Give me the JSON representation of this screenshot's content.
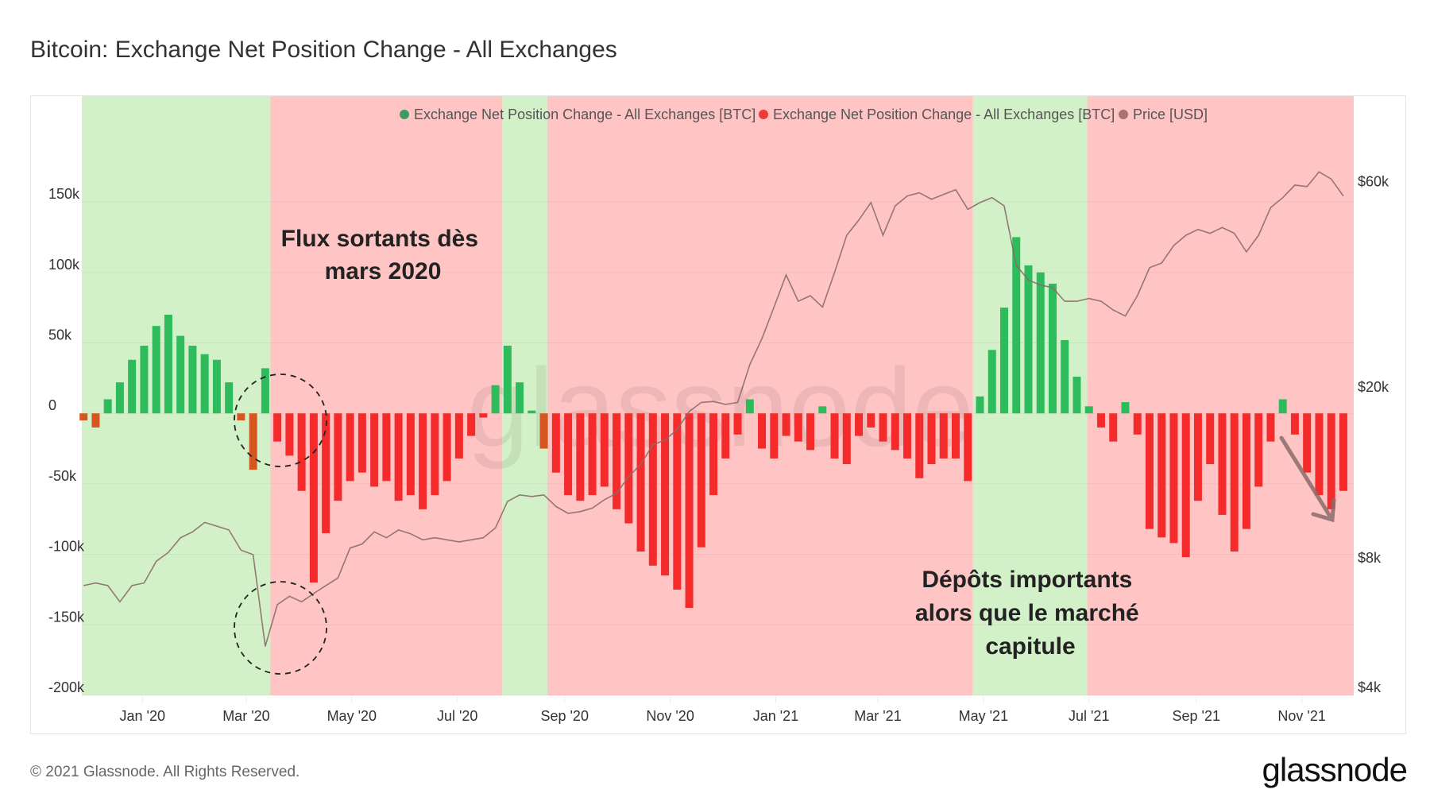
{
  "title": "Bitcoin: Exchange Net Position Change - All Exchanges",
  "footer": {
    "copyright": "© 2021 Glassnode. All Rights Reserved.",
    "logo": "glassnode"
  },
  "watermark": "glassnode",
  "annotations": {
    "outflows": [
      "Flux sortants dès",
      "mars 2020"
    ],
    "deposits": [
      "Dépôts importants",
      "alors que le marché",
      "capitule"
    ]
  },
  "chart_data": {
    "type": "bar+line",
    "title": "Bitcoin: Exchange Net Position Change - All Exchanges",
    "x_range": [
      "2019-11-27",
      "2021-12-01"
    ],
    "x_ticks": [
      {
        "date": "2020-01-01",
        "label": "Jan '20"
      },
      {
        "date": "2020-03-01",
        "label": "Mar '20"
      },
      {
        "date": "2020-05-01",
        "label": "May '20"
      },
      {
        "date": "2020-07-01",
        "label": "Jul '20"
      },
      {
        "date": "2020-09-01",
        "label": "Sep '20"
      },
      {
        "date": "2020-11-01",
        "label": "Nov '20"
      },
      {
        "date": "2021-01-01",
        "label": "Jan '21"
      },
      {
        "date": "2021-03-01",
        "label": "Mar '21"
      },
      {
        "date": "2021-05-01",
        "label": "May '21"
      },
      {
        "date": "2021-07-01",
        "label": "Jul '21"
      },
      {
        "date": "2021-09-01",
        "label": "Sep '21"
      },
      {
        "date": "2021-11-01",
        "label": "Nov '21"
      }
    ],
    "y_left": {
      "range": [
        -200000,
        225000
      ],
      "ticks": [
        {
          "value": 150000,
          "label": "150k"
        },
        {
          "value": 100000,
          "label": "100k"
        },
        {
          "value": 50000,
          "label": "50k"
        },
        {
          "value": 0,
          "label": "0"
        },
        {
          "value": -50000,
          "label": "-50k"
        },
        {
          "value": -100000,
          "label": "-100k"
        },
        {
          "value": -150000,
          "label": "-150k"
        },
        {
          "value": -200000,
          "label": "-200k"
        }
      ]
    },
    "y_right": {
      "scale": "log",
      "range": [
        4000,
        99000
      ],
      "ticks": [
        {
          "value": 60000,
          "label": "$60k"
        },
        {
          "value": 20000,
          "label": "$20k"
        },
        {
          "value": 8000,
          "label": "$8k"
        },
        {
          "value": 4000,
          "label": "$4k"
        }
      ]
    },
    "grid": true,
    "legend": {
      "position": "top-right",
      "items": [
        {
          "label": "Exchange Net Position Change - All Exchanges [BTC]",
          "color": "#3f9a5e"
        },
        {
          "label": "Exchange Net Position Change - All Exchanges [BTC]",
          "color": "#f03a3a"
        },
        {
          "label": "Price [USD]",
          "color": "#a87272"
        }
      ]
    },
    "colors": {
      "positive": "#2dbb5c",
      "negative": "#f52b2b",
      "negative_in_green": "#d5561f",
      "price": "#8a6c6c",
      "band_green": "#d3f1c8",
      "band_red": "#ffc5c5"
    },
    "bands": [
      {
        "from": "2019-11-27",
        "to": "2020-03-15",
        "signal": "green"
      },
      {
        "from": "2020-03-15",
        "to": "2020-07-27",
        "signal": "red"
      },
      {
        "from": "2020-07-27",
        "to": "2020-08-22",
        "signal": "green"
      },
      {
        "from": "2020-08-22",
        "to": "2021-04-25",
        "signal": "red"
      },
      {
        "from": "2021-04-25",
        "to": "2021-06-30",
        "signal": "green"
      },
      {
        "from": "2021-06-30",
        "to": "2021-12-01",
        "signal": "red"
      }
    ],
    "x": [
      "2019-11-28",
      "2019-12-05",
      "2019-12-12",
      "2019-12-19",
      "2019-12-26",
      "2020-01-02",
      "2020-01-09",
      "2020-01-16",
      "2020-01-23",
      "2020-01-30",
      "2020-02-06",
      "2020-02-13",
      "2020-02-20",
      "2020-02-27",
      "2020-03-05",
      "2020-03-12",
      "2020-03-19",
      "2020-03-26",
      "2020-04-02",
      "2020-04-09",
      "2020-04-16",
      "2020-04-23",
      "2020-04-30",
      "2020-05-07",
      "2020-05-14",
      "2020-05-21",
      "2020-05-28",
      "2020-06-04",
      "2020-06-11",
      "2020-06-18",
      "2020-06-25",
      "2020-07-02",
      "2020-07-09",
      "2020-07-16",
      "2020-07-23",
      "2020-07-30",
      "2020-08-06",
      "2020-08-13",
      "2020-08-20",
      "2020-08-27",
      "2020-09-03",
      "2020-09-10",
      "2020-09-17",
      "2020-09-24",
      "2020-10-01",
      "2020-10-08",
      "2020-10-15",
      "2020-10-22",
      "2020-10-29",
      "2020-11-05",
      "2020-11-12",
      "2020-11-19",
      "2020-11-26",
      "2020-12-03",
      "2020-12-10",
      "2020-12-17",
      "2020-12-24",
      "2020-12-31",
      "2021-01-07",
      "2021-01-14",
      "2021-01-21",
      "2021-01-28",
      "2021-02-04",
      "2021-02-11",
      "2021-02-18",
      "2021-02-25",
      "2021-03-04",
      "2021-03-11",
      "2021-03-18",
      "2021-03-25",
      "2021-04-01",
      "2021-04-08",
      "2021-04-15",
      "2021-04-22",
      "2021-04-29",
      "2021-05-06",
      "2021-05-13",
      "2021-05-20",
      "2021-05-27",
      "2021-06-03",
      "2021-06-10",
      "2021-06-17",
      "2021-06-24",
      "2021-07-01",
      "2021-07-08",
      "2021-07-15",
      "2021-07-22",
      "2021-07-29",
      "2021-08-05",
      "2021-08-12",
      "2021-08-19",
      "2021-08-26",
      "2021-09-02",
      "2021-09-09",
      "2021-09-16",
      "2021-09-23",
      "2021-09-30",
      "2021-10-07",
      "2021-10-14",
      "2021-10-21",
      "2021-10-28",
      "2021-11-04",
      "2021-11-11",
      "2021-11-18",
      "2021-11-25"
    ],
    "series": [
      {
        "name": "Exchange Net Position Change - All Exchanges [BTC]",
        "type": "bar",
        "axis": "left",
        "values": [
          -5000,
          -10000,
          10000,
          22000,
          38000,
          48000,
          62000,
          70000,
          55000,
          48000,
          42000,
          38000,
          22000,
          -5000,
          -40000,
          32000,
          -20000,
          -30000,
          -55000,
          -120000,
          -85000,
          -62000,
          -48000,
          -42000,
          -52000,
          -48000,
          -62000,
          -58000,
          -68000,
          -58000,
          -48000,
          -32000,
          -16000,
          -3000,
          20000,
          48000,
          22000,
          2000,
          -25000,
          -42000,
          -58000,
          -62000,
          -58000,
          -52000,
          -68000,
          -78000,
          -98000,
          -108000,
          -115000,
          -125000,
          -138000,
          -95000,
          -58000,
          -32000,
          -15000,
          10000,
          -25000,
          -32000,
          -16000,
          -20000,
          -26000,
          5000,
          -32000,
          -36000,
          -16000,
          -10000,
          -20000,
          -26000,
          -32000,
          -46000,
          -36000,
          -32000,
          -32000,
          -48000,
          12000,
          45000,
          75000,
          125000,
          105000,
          100000,
          92000,
          52000,
          26000,
          5000,
          -10000,
          -20000,
          8000,
          -15000,
          -82000,
          -88000,
          -92000,
          -102000,
          -62000,
          -36000,
          -72000,
          -98000,
          -82000,
          -52000,
          -20000,
          10000,
          -15000,
          -42000,
          -58000,
          -68000,
          -55000
        ]
      },
      {
        "name": "Price [USD]",
        "type": "line",
        "axis": "right",
        "values": [
          7200,
          7300,
          7200,
          6600,
          7200,
          7300,
          8200,
          8600,
          9300,
          9600,
          10100,
          9900,
          9700,
          8700,
          8500,
          5200,
          6500,
          6800,
          6600,
          6900,
          7200,
          7500,
          8800,
          9000,
          9600,
          9300,
          9700,
          9500,
          9200,
          9300,
          9200,
          9100,
          9200,
          9300,
          9800,
          11300,
          11700,
          11600,
          11700,
          11000,
          10600,
          10700,
          10900,
          11400,
          11800,
          12900,
          13800,
          15300,
          15700,
          16600,
          18300,
          19200,
          19300,
          19000,
          19200,
          23500,
          27000,
          32000,
          38000,
          33000,
          34000,
          32000,
          38500,
          47000,
          51000,
          56000,
          47000,
          55000,
          58000,
          59000,
          57000,
          58500,
          60000,
          54000,
          56000,
          57500,
          55000,
          40000,
          37000,
          36000,
          35500,
          33000,
          33000,
          33500,
          33000,
          31500,
          30500,
          34000,
          39500,
          40500,
          44500,
          47000,
          48500,
          47500,
          49000,
          47500,
          43000,
          47000,
          54500,
          57500,
          61500,
          61000,
          66000,
          63500,
          58000
        ]
      }
    ]
  }
}
